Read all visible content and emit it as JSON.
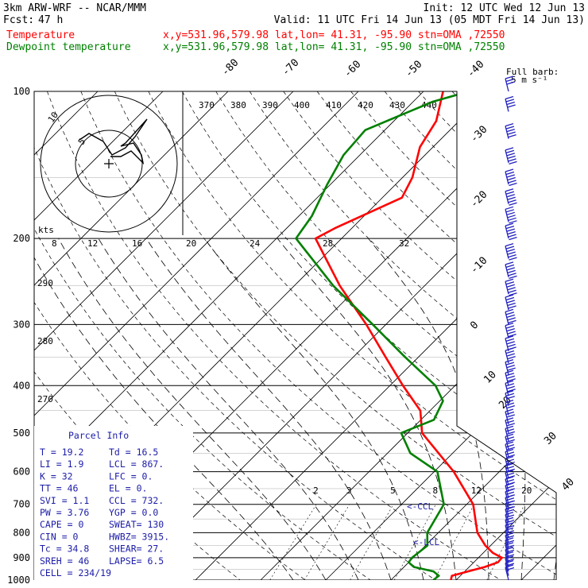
{
  "header": {
    "model": "3km ARW-WRF -- NCAR/MMM",
    "init": "Init: 12 UTC Wed 12 Jun 13",
    "fcst_label": "Fcst:",
    "fcst_value": "47 h",
    "valid": "Valid: 11 UTC Fri 14 Jun 13 (05 MDT Fri 14 Jun 13)",
    "temperature_label": "Temperature",
    "dewpoint_label": "Dewpoint temperature",
    "location_info": "x,y=531.96,579.98   lat,lon= 41.31, -95.90  stn=OMA ,72550"
  },
  "wind_barb_legend": {
    "title": "Full barb:",
    "value": "5 m s⁻¹"
  },
  "hodograph": {
    "units": "kts",
    "ring_labels": [
      "5",
      "10"
    ]
  },
  "parcel_info": {
    "title": "Parcel Info",
    "rows": [
      [
        "T  =    19.2",
        "Td =   16.5"
      ],
      [
        "LI =     1.9",
        "LCL =  867."
      ],
      [
        "K  =      32",
        "LFC =    0."
      ],
      [
        "TT =      46",
        "EL  =    0."
      ],
      [
        "SVI =    1.1",
        "CCL =  732."
      ],
      [
        "PW =    3.76",
        "YGP =   0.0"
      ],
      [
        "CAPE =     0",
        "SWEAT=  130"
      ],
      [
        "CIN =      0",
        "HWBZ= 3915."
      ],
      [
        "Tc  =   34.8",
        "SHEAR=  27."
      ],
      [
        "SREH =    46",
        "LAPSE=  6.5"
      ],
      [
        "CELL = 234/19",
        ""
      ]
    ]
  },
  "markers": {
    "ccl": "<-CCL",
    "lcl": "<-LCL"
  },
  "colors": {
    "temperature": "#ff0000",
    "dewpoint": "#008000",
    "text": "#000000",
    "parcel_text": "#1c1ca8",
    "barb": "#2020c0"
  },
  "chart_data": {
    "type": "line",
    "diagram": "skew-T log-P",
    "pressure_levels": [
      100,
      200,
      300,
      400,
      500,
      600,
      700,
      800,
      900,
      1000
    ],
    "isotherm_labels": [
      -80,
      -70,
      -60,
      -50,
      -40,
      -30,
      -20,
      -10,
      0,
      10,
      20,
      30,
      40
    ],
    "theta_labels": [
      370,
      380,
      390,
      400,
      410,
      420,
      430,
      440
    ],
    "theta_side_labels": [
      290,
      280,
      270
    ],
    "mixing_ratio_labels": [
      2,
      3,
      5,
      8,
      12,
      20
    ],
    "hodograph_speed_labels": [
      8,
      12,
      16,
      20,
      24,
      28,
      32
    ],
    "series": [
      {
        "name": "Temperature",
        "points": [
          [
            1000,
            19.2
          ],
          [
            980,
            18.7
          ],
          [
            960,
            20.5
          ],
          [
            940,
            22.4
          ],
          [
            920,
            23.7
          ],
          [
            900,
            23.6
          ],
          [
            880,
            21.5
          ],
          [
            850,
            19.2
          ],
          [
            800,
            16.0
          ],
          [
            700,
            11.0
          ],
          [
            600,
            3.0
          ],
          [
            500,
            -7.8
          ],
          [
            450,
            -11.5
          ],
          [
            400,
            -18.0
          ],
          [
            350,
            -25.0
          ],
          [
            300,
            -33.0
          ],
          [
            250,
            -43.0
          ],
          [
            200,
            -54.0
          ],
          [
            190,
            -52.5
          ],
          [
            165,
            -47.0
          ],
          [
            150,
            -48.5
          ],
          [
            130,
            -52.0
          ],
          [
            115,
            -53.5
          ],
          [
            100,
            -57.0
          ]
        ]
      },
      {
        "name": "Dewpoint temperature",
        "points": [
          [
            1000,
            16.5
          ],
          [
            980,
            16.7
          ],
          [
            960,
            15.2
          ],
          [
            940,
            11.5
          ],
          [
            920,
            10.0
          ],
          [
            900,
            9.8
          ],
          [
            850,
            10.3
          ],
          [
            800,
            8.3
          ],
          [
            700,
            6.5
          ],
          [
            600,
            0.5
          ],
          [
            550,
            -6.5
          ],
          [
            500,
            -11.0
          ],
          [
            470,
            -8.0
          ],
          [
            430,
            -9.5
          ],
          [
            400,
            -13.0
          ],
          [
            350,
            -22.0
          ],
          [
            300,
            -32.0
          ],
          [
            250,
            -44.0
          ],
          [
            200,
            -57.0
          ],
          [
            180,
            -58.0
          ],
          [
            155,
            -60.5
          ],
          [
            135,
            -62.5
          ],
          [
            120,
            -63.0
          ],
          [
            105,
            -57.0
          ],
          [
            100,
            -53.0
          ]
        ]
      }
    ],
    "wind_barbs_ms": [
      [
        1000,
        8
      ],
      [
        980,
        8
      ],
      [
        960,
        10
      ],
      [
        940,
        12
      ],
      [
        920,
        12
      ],
      [
        900,
        10
      ],
      [
        880,
        10
      ],
      [
        860,
        12
      ],
      [
        840,
        12
      ],
      [
        820,
        12
      ],
      [
        800,
        12
      ],
      [
        780,
        12
      ],
      [
        760,
        12
      ],
      [
        740,
        14
      ],
      [
        720,
        14
      ],
      [
        700,
        15
      ],
      [
        680,
        15
      ],
      [
        660,
        16
      ],
      [
        640,
        16
      ],
      [
        620,
        16
      ],
      [
        600,
        17
      ],
      [
        580,
        17
      ],
      [
        560,
        17
      ],
      [
        540,
        16
      ],
      [
        520,
        16
      ],
      [
        500,
        15
      ],
      [
        480,
        15
      ],
      [
        460,
        16
      ],
      [
        440,
        16
      ],
      [
        420,
        18
      ],
      [
        400,
        20
      ],
      [
        380,
        20
      ],
      [
        360,
        22
      ],
      [
        340,
        25
      ],
      [
        320,
        25
      ],
      [
        300,
        27
      ],
      [
        280,
        27
      ],
      [
        260,
        30
      ],
      [
        240,
        30
      ],
      [
        220,
        32
      ],
      [
        200,
        32
      ],
      [
        185,
        32
      ],
      [
        170,
        30
      ],
      [
        155,
        30
      ],
      [
        140,
        30
      ],
      [
        125,
        25
      ],
      [
        110,
        20
      ],
      [
        100,
        15
      ]
    ]
  }
}
